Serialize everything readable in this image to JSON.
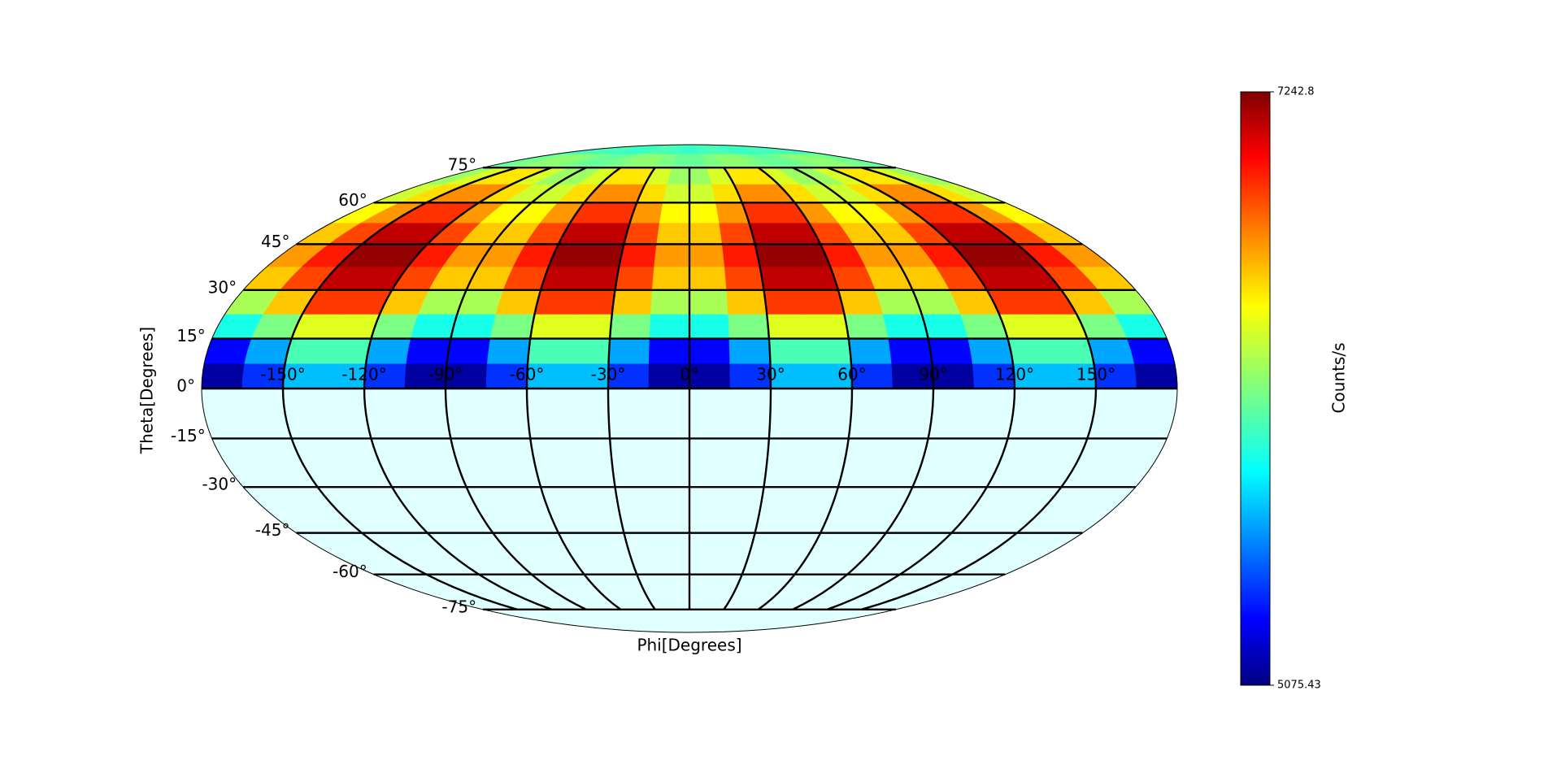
{
  "chart_data": {
    "type": "heatmap",
    "projection": "mollweide",
    "xlabel": "Phi[Degrees]",
    "ylabel": "Theta[Degrees]",
    "colorbar_label": "Counts/s",
    "colormap": "jet",
    "background_color": "#e0ffff",
    "xbins": [
      -180,
      -165,
      -150,
      -135,
      -120,
      -105,
      -90,
      -75,
      -60,
      -45,
      -30,
      -15,
      0,
      15,
      30,
      45,
      60,
      75,
      90,
      105,
      120,
      135,
      150,
      165,
      180
    ],
    "ybins": [
      0,
      7.5,
      15,
      22.5,
      30,
      37.5,
      45,
      52.5,
      60,
      67.5,
      75,
      82.5,
      90
    ],
    "values": [
      [
        5147,
        5450,
        5753,
        5753,
        5450,
        5147,
        5147,
        5450,
        5753,
        5753,
        5450,
        5147,
        5147,
        5450,
        5753,
        5753,
        5450,
        5147,
        5147,
        5450,
        5753,
        5753,
        5450,
        5147
      ],
      [
        5354,
        5700,
        6046,
        6046,
        5700,
        5354,
        5354,
        5700,
        6046,
        6046,
        5700,
        5354,
        5354,
        5700,
        6046,
        6046,
        5700,
        5354,
        5354,
        5700,
        6046,
        6046,
        5700,
        5354
      ],
      [
        5934,
        6150,
        6367,
        6367,
        6150,
        5934,
        5934,
        6150,
        6367,
        6367,
        6150,
        5934,
        5934,
        6150,
        6367,
        6367,
        6150,
        5934,
        5934,
        6150,
        6367,
        6367,
        6150,
        5934
      ],
      [
        6247,
        6550,
        6853,
        6853,
        6550,
        6247,
        6247,
        6550,
        6853,
        6853,
        6550,
        6247,
        6247,
        6550,
        6853,
        6853,
        6550,
        6247,
        6247,
        6550,
        6853,
        6853,
        6550,
        6247
      ],
      [
        6544,
        6825,
        7106,
        7106,
        6825,
        6544,
        6544,
        6825,
        7106,
        7106,
        6825,
        6544,
        6544,
        6825,
        7106,
        7106,
        6825,
        6544,
        6544,
        6825,
        7106,
        7106,
        6825,
        6544
      ],
      [
        6643,
        6920,
        7197,
        7197,
        6920,
        6643,
        6643,
        6920,
        7197,
        7197,
        6920,
        6643,
        6643,
        6920,
        7197,
        7197,
        6920,
        6643,
        6643,
        6920,
        7197,
        7197,
        6920,
        6643
      ],
      [
        6544,
        6825,
        7106,
        7106,
        6825,
        6544,
        6544,
        6825,
        7106,
        7106,
        6825,
        6544,
        6544,
        6825,
        7106,
        7106,
        6825,
        6544,
        6544,
        6825,
        7106,
        7106,
        6825,
        6544
      ],
      [
        6434,
        6650,
        6867,
        6867,
        6650,
        6434,
        6434,
        6650,
        6867,
        6867,
        6650,
        6434,
        6434,
        6650,
        6867,
        6867,
        6650,
        6434,
        6434,
        6650,
        6867,
        6867,
        6650,
        6434
      ],
      [
        6327,
        6500,
        6673,
        6673,
        6500,
        6327,
        6327,
        6500,
        6673,
        6673,
        6500,
        6327,
        6327,
        6500,
        6673,
        6673,
        6500,
        6327,
        6327,
        6500,
        6673,
        6673,
        6500,
        6327
      ],
      [
        6220,
        6350,
        6480,
        6480,
        6350,
        6220,
        6220,
        6350,
        6480,
        6480,
        6350,
        6220,
        6220,
        6350,
        6480,
        6480,
        6350,
        6220,
        6220,
        6350,
        6480,
        6480,
        6350,
        6220
      ],
      [
        6107,
        6150,
        6193,
        6193,
        6150,
        6107,
        6107,
        6150,
        6193,
        6193,
        6150,
        6107,
        6107,
        6150,
        6193,
        6193,
        6150,
        6107,
        6107,
        6150,
        6193,
        6193,
        6150,
        6107
      ],
      [
        6003,
        6025,
        6047,
        6047,
        6025,
        6003,
        6003,
        6025,
        6047,
        6047,
        6025,
        6003,
        6003,
        6025,
        6047,
        6047,
        6025,
        6003,
        6003,
        6025,
        6047,
        6047,
        6025,
        6003
      ]
    ],
    "xticks": [
      {
        "value": -150,
        "label": "-150°"
      },
      {
        "value": -120,
        "label": "-120°"
      },
      {
        "value": -90,
        "label": "-90°"
      },
      {
        "value": -60,
        "label": "-60°"
      },
      {
        "value": -30,
        "label": "-30°"
      },
      {
        "value": 0,
        "label": "0°"
      },
      {
        "value": 30,
        "label": "30°"
      },
      {
        "value": 60,
        "label": "60°"
      },
      {
        "value": 90,
        "label": "90°"
      },
      {
        "value": 120,
        "label": "120°"
      },
      {
        "value": 150,
        "label": "150°"
      }
    ],
    "yticks": [
      {
        "value": -75,
        "label": "-75°"
      },
      {
        "value": -60,
        "label": "-60°"
      },
      {
        "value": -45,
        "label": "-45°"
      },
      {
        "value": -30,
        "label": "-30°"
      },
      {
        "value": -15,
        "label": "-15°"
      },
      {
        "value": 0,
        "label": "0°"
      },
      {
        "value": 15,
        "label": "15°"
      },
      {
        "value": 30,
        "label": "30°"
      },
      {
        "value": 45,
        "label": "45°"
      },
      {
        "value": 60,
        "label": "60°"
      },
      {
        "value": 75,
        "label": "75°"
      }
    ],
    "clim": [
      5075.43,
      7242.8
    ],
    "cticks": [
      5075.43,
      7242.8
    ],
    "grid": true
  }
}
